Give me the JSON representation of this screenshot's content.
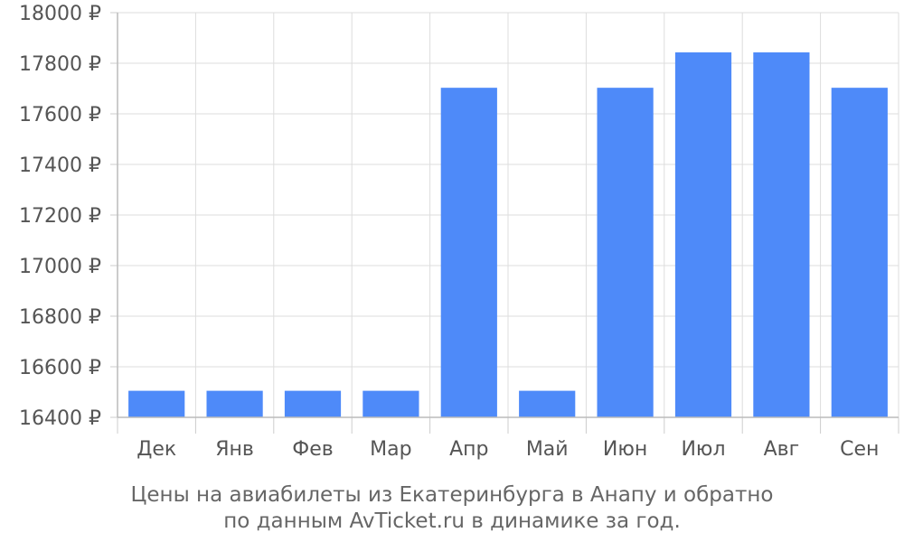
{
  "chart_data": {
    "type": "bar",
    "categories": [
      "Дек",
      "Янв",
      "Фев",
      "Мар",
      "Апр",
      "Май",
      "Июн",
      "Июл",
      "Авг",
      "Сен"
    ],
    "values": [
      16505,
      16505,
      16505,
      16505,
      17703,
      16505,
      17703,
      17843,
      17843,
      17703
    ],
    "ylim": [
      16400,
      18000
    ],
    "yticks": [
      16400,
      16600,
      16800,
      17000,
      17200,
      17400,
      17600,
      17800,
      18000
    ],
    "currency_suffix": " ₽",
    "grid": true,
    "bar_color": "#4e8af9",
    "caption_line1": "Цены на авиабилеты из Екатеринбурга в Анапу и обратно",
    "caption_line2": "по данным AvTicket.ru в динамике за год."
  }
}
